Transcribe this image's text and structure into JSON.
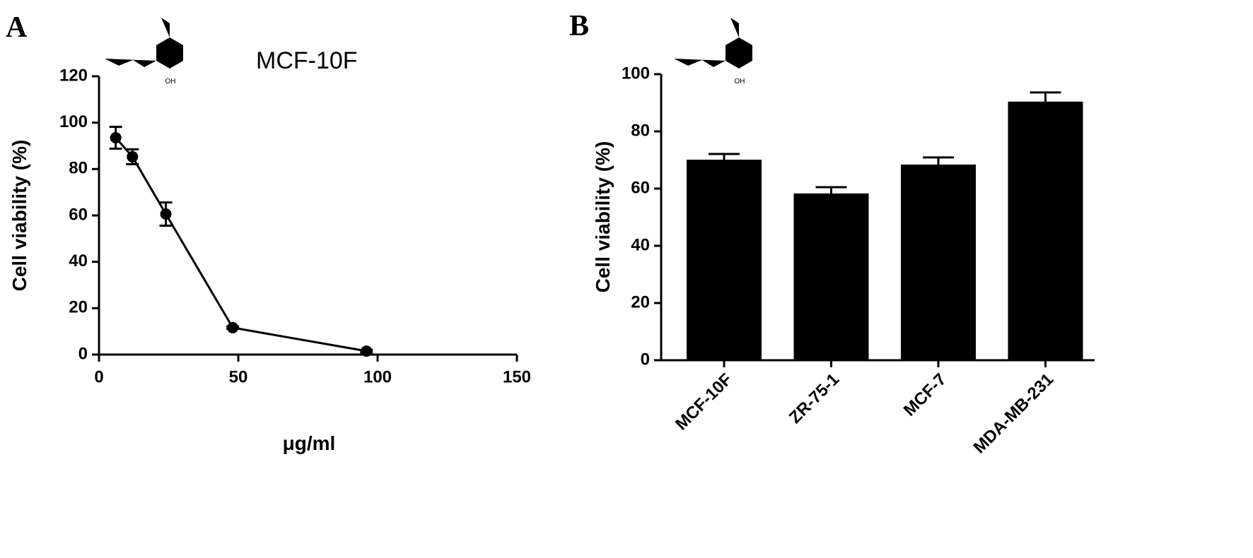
{
  "chart_data": [
    {
      "type": "line",
      "panel_label": "A",
      "annotation": "MCF-10F",
      "structure_label": "OH",
      "x_label": "μg/ml",
      "y_label": "Cell viability (%)",
      "x": [
        6,
        12,
        24,
        48,
        96
      ],
      "values": [
        93.5,
        85.3,
        60.6,
        11.6,
        1.5
      ],
      "errors": [
        4.7,
        3.2,
        5,
        0.5,
        0.5
      ],
      "color": "#000000",
      "xlim": [
        0,
        150
      ],
      "xticks": [
        0,
        50,
        100,
        150
      ],
      "ylim": [
        0,
        120
      ],
      "yticks": [
        0,
        20,
        40,
        60,
        80,
        100,
        120
      ]
    },
    {
      "type": "bar",
      "panel_label": "B",
      "structure_label": "OH",
      "y_label": "Cell viability (%)",
      "categories": [
        "MCF-10F",
        "ZR-75-1",
        "MCF-7",
        "MDA-MB-231"
      ],
      "values": [
        70.1,
        58.3,
        68.4,
        90.4
      ],
      "errors": [
        2,
        2.2,
        2.5,
        3.2
      ],
      "color": "#000000",
      "ylim": [
        0,
        100
      ],
      "yticks": [
        0,
        20,
        40,
        60,
        80,
        100
      ]
    }
  ]
}
